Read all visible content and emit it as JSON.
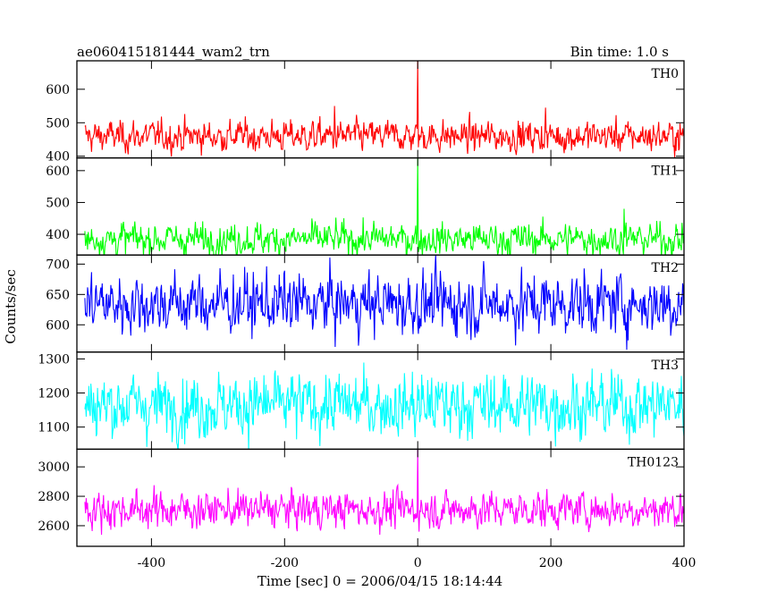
{
  "header": {
    "title": "ae060415181444_wam2_trn",
    "bin_time": "Bin time: 1.0 s"
  },
  "chart_data": {
    "type": "line",
    "xlabel": "Time [sec] 0 = 2006/04/15 18:14:44",
    "ylabel": "Counts/sec",
    "xlim": [
      -512,
      400
    ],
    "x_ticks": [
      -400,
      -200,
      0,
      200,
      400
    ],
    "x_step": 1.0,
    "panels": [
      {
        "name": "TH0",
        "color": "#ff0000",
        "ylim": [
          395,
          685
        ],
        "y_ticks": [
          400,
          500,
          600
        ],
        "mean": 460,
        "noise": 22,
        "spikes": [
          {
            "x": 0,
            "y": 685
          },
          {
            "x": -125,
            "y": 550
          },
          {
            "x": 192,
            "y": 545
          }
        ]
      },
      {
        "name": "TH1",
        "color": "#00ff00",
        "ylim": [
          335,
          640
        ],
        "y_ticks": [
          400,
          500,
          600
        ],
        "mean": 385,
        "noise": 24,
        "spikes": [
          {
            "x": 0,
            "y": 640
          },
          {
            "x": 310,
            "y": 480
          }
        ]
      },
      {
        "name": "TH2",
        "color": "#0000ff",
        "ylim": [
          555,
          715
        ],
        "y_ticks": [
          600,
          650,
          700
        ],
        "mean": 635,
        "noise": 24,
        "spikes": []
      },
      {
        "name": "TH3",
        "color": "#00ffff",
        "ylim": [
          1035,
          1320
        ],
        "y_ticks": [
          1100,
          1200,
          1300
        ],
        "mean": 1165,
        "noise": 45,
        "spikes": []
      },
      {
        "name": "TH0123",
        "color": "#ff00ff",
        "ylim": [
          2460,
          3120
        ],
        "y_ticks": [
          2600,
          2800,
          3000
        ],
        "mean": 2710,
        "noise": 60,
        "spikes": [
          {
            "x": 0,
            "y": 3120
          }
        ]
      }
    ]
  }
}
